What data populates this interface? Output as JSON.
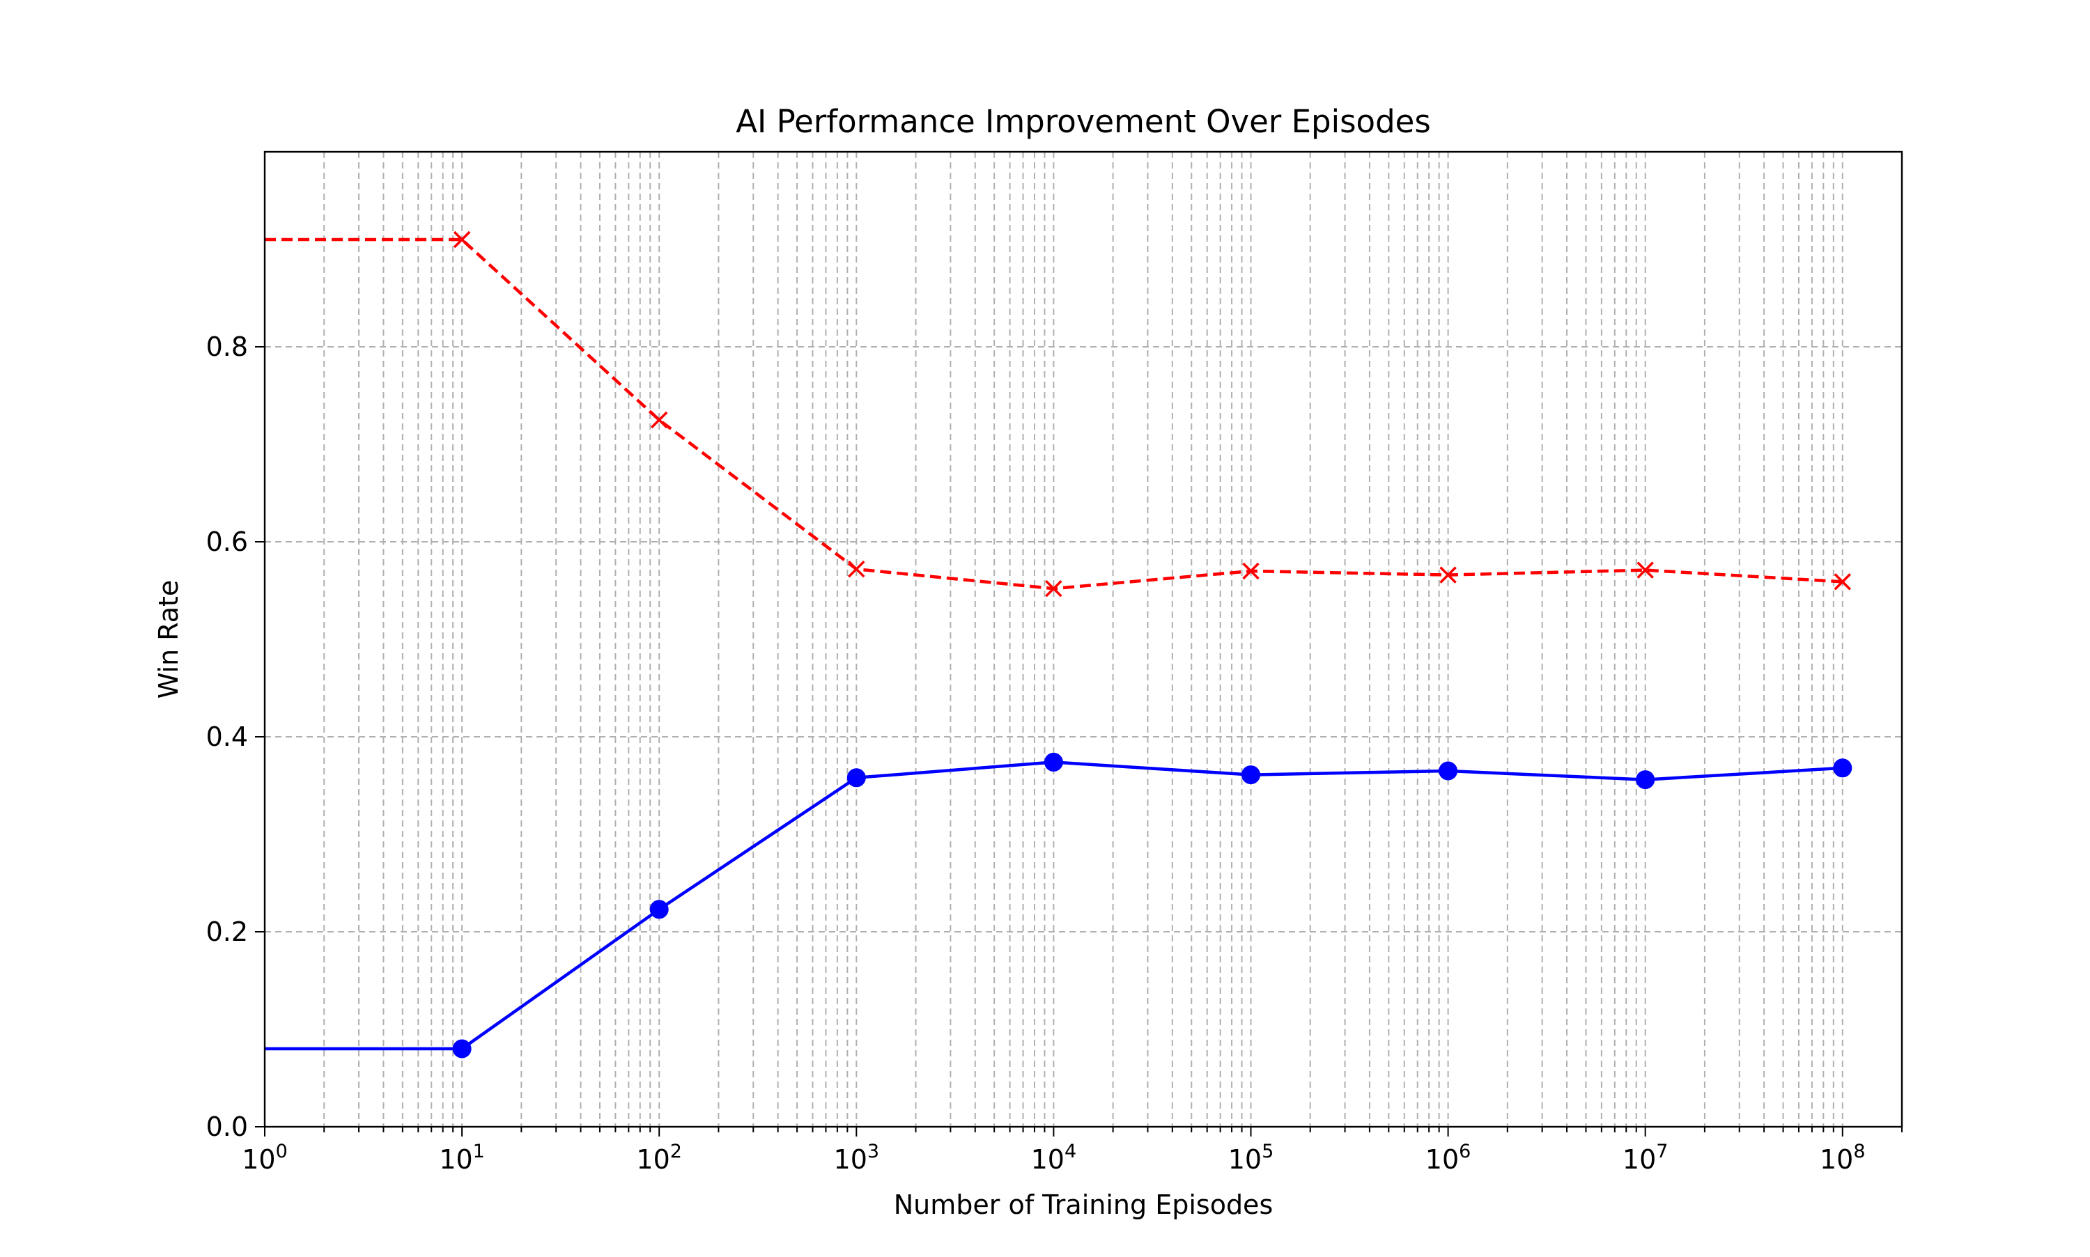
{
  "chart_data": {
    "type": "line",
    "title": "AI Performance Improvement Over Episodes",
    "xlabel": "Number of Training Episodes",
    "ylabel": "Win Rate",
    "xscale": "log",
    "xlim": [
      1,
      200000000
    ],
    "ylim": [
      0,
      1.0
    ],
    "x_ticks": [
      {
        "value": 1,
        "base": "10",
        "exp": "0"
      },
      {
        "value": 10,
        "base": "10",
        "exp": "1"
      },
      {
        "value": 100,
        "base": "10",
        "exp": "2"
      },
      {
        "value": 1000,
        "base": "10",
        "exp": "3"
      },
      {
        "value": 10000,
        "base": "10",
        "exp": "4"
      },
      {
        "value": 100000,
        "base": "10",
        "exp": "5"
      },
      {
        "value": 1000000,
        "base": "10",
        "exp": "6"
      },
      {
        "value": 10000000,
        "base": "10",
        "exp": "7"
      },
      {
        "value": 100000000,
        "base": "10",
        "exp": "8"
      }
    ],
    "y_ticks": [
      "0.0",
      "0.2",
      "0.4",
      "0.6",
      "0.8"
    ],
    "grid": true,
    "legend": "none",
    "series": [
      {
        "color": "#ff0000",
        "line_style": "dashed",
        "marker": "x",
        "x": [
          1,
          10,
          100,
          1000,
          10000,
          100000,
          1000000,
          10000000,
          100000000
        ],
        "values": [
          0.91,
          0.91,
          0.725,
          0.572,
          0.552,
          0.57,
          0.566,
          0.571,
          0.559
        ]
      },
      {
        "color": "#0000ff",
        "line_style": "solid",
        "marker": "circle",
        "x": [
          1,
          10,
          100,
          1000,
          10000,
          100000,
          1000000,
          10000000,
          100000000
        ],
        "values": [
          0.08,
          0.08,
          0.223,
          0.358,
          0.374,
          0.361,
          0.365,
          0.356,
          0.368
        ]
      }
    ]
  }
}
